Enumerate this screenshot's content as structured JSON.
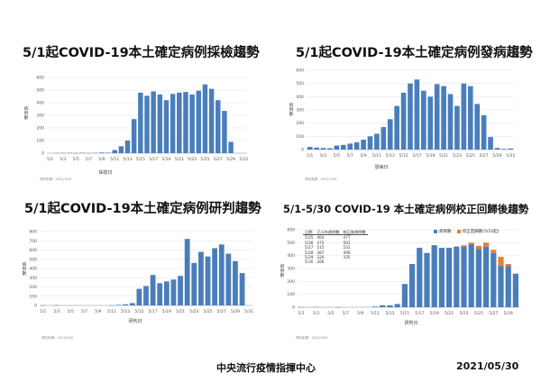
{
  "footer": {
    "org": "中央流行疫情指揮中心",
    "date": "2021/05/30"
  },
  "colors": {
    "bar": "#4a7ebb",
    "correction": "#ed7d31"
  },
  "chart_data": [
    {
      "type": "bar",
      "title": "5/1起COVID-19本土確定病例採檢趨勢",
      "ylabel": "病例數",
      "xlabel": "採檢日",
      "note": "資料來源：2021/5/30",
      "ylim": [
        0,
        600
      ],
      "yticks": [
        "0",
        "100",
        "200",
        "300",
        "400",
        "500",
        "600"
      ],
      "xtick_labels": [
        "5/1",
        "5/3",
        "5/5",
        "5/7",
        "5/9",
        "5/11",
        "5/13",
        "5/15",
        "5/17",
        "5/19",
        "5/21",
        "5/23",
        "5/25",
        "5/27",
        "5/29",
        "5/31"
      ],
      "categories": [
        "5/1",
        "5/2",
        "5/3",
        "5/4",
        "5/5",
        "5/6",
        "5/7",
        "5/8",
        "5/9",
        "5/10",
        "5/11",
        "5/12",
        "5/13",
        "5/14",
        "5/15",
        "5/16",
        "5/17",
        "5/18",
        "5/19",
        "5/20",
        "5/21",
        "5/22",
        "5/23",
        "5/24",
        "5/25",
        "5/26",
        "5/27",
        "5/28",
        "5/29",
        "5/30",
        "5/31"
      ],
      "values": [
        0,
        2,
        1,
        2,
        1,
        3,
        1,
        2,
        5,
        4,
        25,
        55,
        100,
        270,
        480,
        455,
        490,
        465,
        420,
        470,
        480,
        485,
        465,
        495,
        545,
        510,
        420,
        335,
        90,
        0,
        0
      ]
    },
    {
      "type": "bar",
      "title": "5/1起COVID-19本土確定病例發病趨勢",
      "ylabel": "病例數",
      "xlabel": "發病日",
      "note": "資料來源：2021/5/30",
      "ylim": [
        0,
        600
      ],
      "yticks": [
        "0",
        "100",
        "200",
        "300",
        "400",
        "500",
        "600"
      ],
      "xtick_labels": [
        "5/1",
        "5/3",
        "5/5",
        "5/7",
        "5/9",
        "5/11",
        "5/13",
        "5/15",
        "5/17",
        "5/19",
        "5/21",
        "5/23",
        "5/25",
        "5/27",
        "5/29",
        "5/31"
      ],
      "categories": [
        "5/1",
        "5/2",
        "5/3",
        "5/4",
        "5/5",
        "5/6",
        "5/7",
        "5/8",
        "5/9",
        "5/10",
        "5/11",
        "5/12",
        "5/13",
        "5/14",
        "5/15",
        "5/16",
        "5/17",
        "5/18",
        "5/19",
        "5/20",
        "5/21",
        "5/22",
        "5/23",
        "5/24",
        "5/25",
        "5/26",
        "5/27",
        "5/28",
        "5/29",
        "5/30",
        "5/31"
      ],
      "values": [
        20,
        15,
        12,
        10,
        30,
        35,
        45,
        55,
        75,
        100,
        120,
        170,
        230,
        330,
        430,
        500,
        530,
        445,
        400,
        495,
        480,
        420,
        330,
        500,
        480,
        345,
        260,
        95,
        12,
        5,
        8
      ]
    },
    {
      "type": "bar",
      "title": "5/1起COVID-19本土確定病例研判趨勢",
      "ylabel": "病例數",
      "xlabel": "研判日",
      "note": "資料來源：2021/5/30",
      "ylim": [
        0,
        800
      ],
      "yticks": [
        "0",
        "100",
        "200",
        "300",
        "400",
        "500",
        "600",
        "700",
        "800"
      ],
      "xtick_labels": [
        "5/1",
        "5/3",
        "5/5",
        "5/7",
        "5/9",
        "5/11",
        "5/13",
        "5/15",
        "5/17",
        "5/19",
        "5/21",
        "5/23",
        "5/25",
        "5/27",
        "5/29",
        "5/31"
      ],
      "categories": [
        "5/1",
        "5/2",
        "5/3",
        "5/4",
        "5/5",
        "5/6",
        "5/7",
        "5/8",
        "5/9",
        "5/10",
        "5/11",
        "5/12",
        "5/13",
        "5/14",
        "5/15",
        "5/16",
        "5/17",
        "5/18",
        "5/19",
        "5/20",
        "5/21",
        "5/22",
        "5/23",
        "5/24",
        "5/25",
        "5/26",
        "5/27",
        "5/28",
        "5/29",
        "5/30",
        "5/31"
      ],
      "values": [
        1,
        0,
        2,
        0,
        0,
        0,
        0,
        0,
        0,
        0,
        1,
        6,
        12,
        25,
        180,
        210,
        330,
        240,
        260,
        280,
        320,
        720,
        460,
        580,
        530,
        620,
        660,
        560,
        480,
        350,
        0
      ]
    },
    {
      "type": "bar",
      "title": "5/1-5/30 COVID-19 本土確定病例校正回歸後趨勢",
      "ylabel": "病例數",
      "xlabel": "研判日",
      "note": "資料來源：2021/5/30",
      "ylim": [
        0,
        600
      ],
      "yticks": [
        "0",
        "100",
        "200",
        "300",
        "400",
        "500",
        "600"
      ],
      "xtick_labels": [
        "5/1",
        "5/3",
        "5/5",
        "5/7",
        "5/9",
        "5/11",
        "5/13",
        "5/15",
        "5/17",
        "5/19",
        "5/21",
        "5/23",
        "5/25",
        "5/27",
        "5/29"
      ],
      "legend": [
        "病例數",
        "校正回歸數(5/22起)"
      ],
      "legend_position": "top-right",
      "categories": [
        "5/1",
        "5/2",
        "5/3",
        "5/4",
        "5/5",
        "5/6",
        "5/7",
        "5/8",
        "5/9",
        "5/10",
        "5/11",
        "5/12",
        "5/13",
        "5/14",
        "5/15",
        "5/16",
        "5/17",
        "5/18",
        "5/19",
        "5/20",
        "5/21",
        "5/22",
        "5/23",
        "5/24",
        "5/25",
        "5/26",
        "5/27",
        "5/28",
        "5/29",
        "5/30"
      ],
      "series": [
        {
          "name": "病例數",
          "values": [
            1,
            0,
            2,
            0,
            0,
            1,
            0,
            0,
            0,
            0,
            5,
            15,
            15,
            25,
            180,
            335,
            460,
            420,
            480,
            460,
            460,
            470,
            470,
            490,
            450,
            470,
            420,
            320,
            320,
            260
          ]
        },
        {
          "name": "校正回歸數(5/22起)",
          "values": [
            0,
            0,
            0,
            0,
            0,
            0,
            0,
            0,
            0,
            0,
            0,
            0,
            0,
            0,
            0,
            0,
            0,
            0,
            0,
            0,
            0,
            0,
            10,
            10,
            25,
            30,
            25,
            70,
            15,
            0
          ]
        }
      ],
      "table": {
        "headers": [
          "日期",
          "已公布病例數",
          "校正後病例數"
        ],
        "rows": [
          [
            "5/25",
            "464",
            "477"
          ],
          [
            "5/26",
            "475",
            "501"
          ],
          [
            "5/27",
            "515",
            "531"
          ],
          [
            "5/28",
            "387",
            "406"
          ],
          [
            "5/29",
            "320",
            "335"
          ],
          [
            "5/30",
            "266",
            ""
          ]
        ]
      }
    }
  ]
}
